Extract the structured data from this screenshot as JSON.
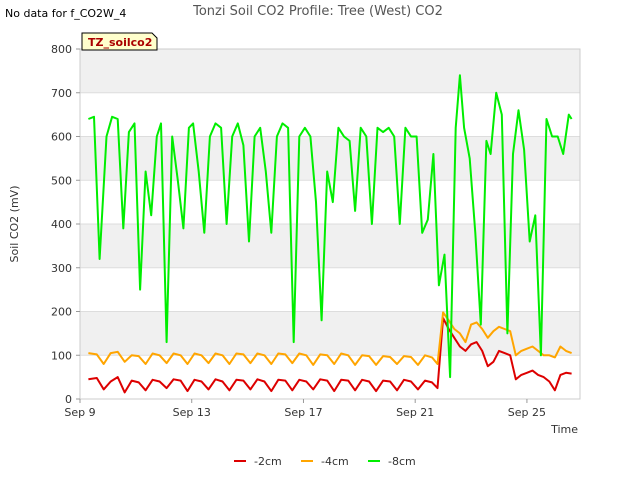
{
  "no_data_note": "No data for f_CO2W_4",
  "legend_box_label": "TZ_soilco2",
  "chart_data": {
    "type": "line",
    "title": "Tonzi Soil CO2 Profile: Tree (West) CO2",
    "xlabel": "Time",
    "ylabel": "Soil CO2 (mV)",
    "xlim": [
      9,
      26.9
    ],
    "ylim": [
      0,
      800
    ],
    "yticks": [
      0,
      100,
      200,
      300,
      400,
      500,
      600,
      700,
      800
    ],
    "xticks": [
      {
        "value": 9,
        "label": "Sep 9"
      },
      {
        "value": 13,
        "label": "Sep 13"
      },
      {
        "value": 17,
        "label": "Sep 17"
      },
      {
        "value": 21,
        "label": "Sep 21"
      },
      {
        "value": 25,
        "label": "Sep 25"
      }
    ],
    "grid": true,
    "legend_position": "bottom",
    "series": [
      {
        "name": "-2cm",
        "color": "#dd0000",
        "x": [
          9.3,
          9.6,
          9.85,
          10.1,
          10.35,
          10.6,
          10.85,
          11.1,
          11.35,
          11.6,
          11.85,
          12.1,
          12.35,
          12.6,
          12.85,
          13.1,
          13.35,
          13.6,
          13.85,
          14.1,
          14.35,
          14.6,
          14.85,
          15.1,
          15.35,
          15.6,
          15.85,
          16.1,
          16.35,
          16.6,
          16.85,
          17.1,
          17.35,
          17.6,
          17.85,
          18.1,
          18.35,
          18.6,
          18.85,
          19.1,
          19.35,
          19.6,
          19.85,
          20.1,
          20.35,
          20.6,
          20.85,
          21.1,
          21.35,
          21.6,
          21.8,
          22.0,
          22.2,
          22.4,
          22.6,
          22.8,
          23.0,
          23.2,
          23.4,
          23.6,
          23.8,
          24.0,
          24.2,
          24.4,
          24.6,
          24.8,
          25.0,
          25.2,
          25.4,
          25.6,
          25.8,
          26.0,
          26.2,
          26.4,
          26.6
        ],
        "y": [
          45,
          48,
          22,
          40,
          50,
          15,
          42,
          38,
          20,
          44,
          40,
          25,
          45,
          42,
          18,
          44,
          40,
          22,
          45,
          40,
          20,
          44,
          42,
          22,
          45,
          40,
          18,
          44,
          42,
          20,
          44,
          40,
          22,
          45,
          42,
          18,
          44,
          42,
          20,
          44,
          40,
          18,
          42,
          40,
          20,
          44,
          40,
          22,
          42,
          38,
          25,
          185,
          160,
          140,
          120,
          110,
          125,
          130,
          110,
          75,
          85,
          110,
          105,
          100,
          45,
          55,
          60,
          65,
          55,
          50,
          40,
          20,
          55,
          60,
          58
        ]
      },
      {
        "name": "-4cm",
        "color": "#ffa500",
        "x": [
          9.3,
          9.6,
          9.85,
          10.1,
          10.35,
          10.6,
          10.85,
          11.1,
          11.35,
          11.6,
          11.85,
          12.1,
          12.35,
          12.6,
          12.85,
          13.1,
          13.35,
          13.6,
          13.85,
          14.1,
          14.35,
          14.6,
          14.85,
          15.1,
          15.35,
          15.6,
          15.85,
          16.1,
          16.35,
          16.6,
          16.85,
          17.1,
          17.35,
          17.6,
          17.85,
          18.1,
          18.35,
          18.6,
          18.85,
          19.1,
          19.35,
          19.6,
          19.85,
          20.1,
          20.35,
          20.6,
          20.85,
          21.1,
          21.35,
          21.6,
          21.8,
          22.0,
          22.2,
          22.4,
          22.6,
          22.8,
          23.0,
          23.2,
          23.4,
          23.6,
          23.8,
          24.0,
          24.2,
          24.4,
          24.6,
          24.8,
          25.0,
          25.2,
          25.4,
          25.6,
          25.8,
          26.0,
          26.2,
          26.4,
          26.6
        ],
        "y": [
          105,
          102,
          80,
          105,
          108,
          85,
          100,
          98,
          80,
          104,
          100,
          82,
          104,
          100,
          80,
          104,
          100,
          82,
          104,
          100,
          80,
          104,
          102,
          82,
          104,
          100,
          80,
          104,
          102,
          82,
          104,
          100,
          78,
          102,
          100,
          80,
          104,
          100,
          78,
          100,
          98,
          78,
          98,
          96,
          80,
          98,
          96,
          78,
          100,
          95,
          80,
          198,
          180,
          160,
          150,
          130,
          170,
          175,
          160,
          140,
          155,
          165,
          160,
          155,
          100,
          110,
          115,
          120,
          110,
          100,
          100,
          95,
          120,
          110,
          105
        ]
      },
      {
        "name": "-8cm",
        "color": "#00ee00",
        "x": [
          9.3,
          9.5,
          9.7,
          9.95,
          10.15,
          10.35,
          10.55,
          10.75,
          10.95,
          11.15,
          11.35,
          11.55,
          11.75,
          11.9,
          12.1,
          12.3,
          12.5,
          12.7,
          12.9,
          13.05,
          13.25,
          13.45,
          13.65,
          13.85,
          14.05,
          14.25,
          14.45,
          14.65,
          14.85,
          15.05,
          15.25,
          15.45,
          15.65,
          15.85,
          16.05,
          16.25,
          16.45,
          16.65,
          16.85,
          17.05,
          17.25,
          17.45,
          17.65,
          17.85,
          18.05,
          18.25,
          18.45,
          18.65,
          18.85,
          19.05,
          19.25,
          19.45,
          19.65,
          19.85,
          20.05,
          20.25,
          20.45,
          20.65,
          20.85,
          21.05,
          21.25,
          21.45,
          21.65,
          21.85,
          22.05,
          22.25,
          22.45,
          22.6,
          22.75,
          22.95,
          23.15,
          23.35,
          23.55,
          23.7,
          23.9,
          24.1,
          24.3,
          24.5,
          24.7,
          24.9,
          25.1,
          25.3,
          25.5,
          25.7,
          25.9,
          26.1,
          26.3,
          26.5,
          26.6
        ],
        "y": [
          640,
          645,
          320,
          600,
          645,
          640,
          390,
          610,
          630,
          250,
          520,
          420,
          600,
          630,
          130,
          600,
          500,
          390,
          620,
          630,
          520,
          380,
          600,
          630,
          620,
          400,
          600,
          630,
          580,
          360,
          600,
          620,
          520,
          380,
          600,
          630,
          620,
          130,
          600,
          620,
          600,
          450,
          180,
          520,
          450,
          620,
          600,
          590,
          430,
          620,
          600,
          400,
          620,
          610,
          620,
          600,
          400,
          620,
          600,
          600,
          380,
          410,
          560,
          260,
          330,
          50,
          620,
          740,
          620,
          550,
          380,
          170,
          590,
          560,
          700,
          650,
          150,
          560,
          660,
          570,
          360,
          420,
          100,
          640,
          600,
          600,
          560,
          650,
          640
        ]
      }
    ]
  }
}
